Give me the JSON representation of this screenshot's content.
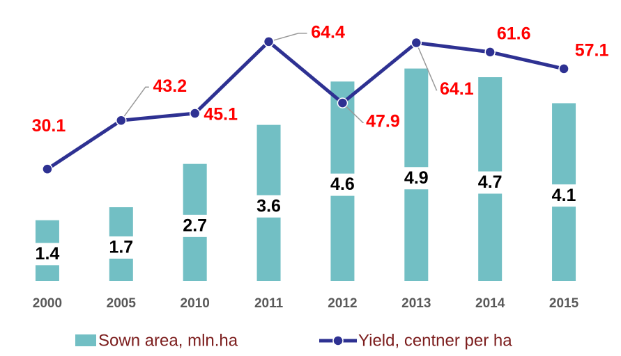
{
  "chart_data": {
    "type": "bar",
    "categories": [
      "2000",
      "2005",
      "2010",
      "2011",
      "2012",
      "2013",
      "2014",
      "2015"
    ],
    "series": [
      {
        "name": "Sown area, mln.ha",
        "type": "bar",
        "color": "#72bfc4",
        "values": [
          1.4,
          1.7,
          2.7,
          3.6,
          4.6,
          4.9,
          4.7,
          4.1
        ]
      },
      {
        "name": "Yield, centner per ha",
        "type": "line",
        "axis": "y2",
        "color": "#2e3192",
        "values": [
          30.1,
          43.2,
          45.1,
          64.4,
          47.9,
          64.1,
          61.6,
          57.1
        ]
      }
    ],
    "ylim": [
      0,
      6
    ],
    "y2lim": [
      0,
      70
    ],
    "grid": false,
    "legend": "bottom"
  }
}
